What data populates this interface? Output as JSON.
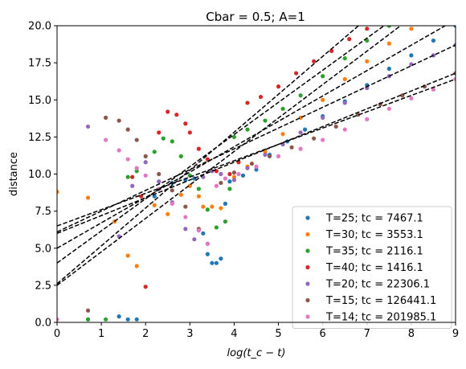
{
  "chart_data": {
    "type": "scatter",
    "title": "Cbar = 0.5; A=1",
    "xlabel": "log(t_c − t)",
    "ylabel": "distance",
    "xlim": [
      0,
      9
    ],
    "ylim": [
      0,
      20
    ],
    "xticks": [
      "0",
      "1",
      "2",
      "3",
      "4",
      "5",
      "6",
      "7",
      "8",
      "9"
    ],
    "yticks": [
      "0.0",
      "2.5",
      "5.0",
      "7.5",
      "10.0",
      "12.5",
      "15.0",
      "17.5",
      "20.0"
    ],
    "grid": false,
    "legend_position": "lower-right",
    "series": [
      {
        "name": "T=25; tc = 7467.1",
        "color": "#1f77b4",
        "points": [
          [
            0.7,
            0.2
          ],
          [
            1.4,
            0.4
          ],
          [
            1.6,
            0.2
          ],
          [
            1.8,
            0.2
          ],
          [
            2.2,
            8.5
          ],
          [
            2.6,
            9.4
          ],
          [
            2.9,
            9.6
          ],
          [
            3.1,
            9.7
          ],
          [
            3.3,
            6.0
          ],
          [
            3.4,
            4.6
          ],
          [
            3.5,
            4.0
          ],
          [
            3.6,
            4.0
          ],
          [
            3.7,
            4.3
          ],
          [
            3.8,
            8.0
          ],
          [
            3.9,
            9.5
          ],
          [
            4.2,
            9.9
          ],
          [
            4.5,
            10.3
          ],
          [
            4.8,
            11.3
          ],
          [
            5.2,
            12.2
          ],
          [
            5.6,
            13.0
          ],
          [
            6.0,
            13.9
          ],
          [
            6.5,
            14.9
          ],
          [
            7.0,
            16.0
          ],
          [
            7.5,
            17.1
          ],
          [
            8.0,
            18.0
          ],
          [
            8.5,
            19.0
          ],
          [
            9.0,
            20.0
          ]
        ],
        "fit": [
          [
            0,
            5.0
          ],
          [
            9,
            20.4
          ]
        ]
      },
      {
        "name": "T=30; tc = 3553.1",
        "color": "#ff7f0e",
        "points": [
          [
            0,
            8.8
          ],
          [
            0.7,
            8.4
          ],
          [
            1.3,
            6.8
          ],
          [
            1.6,
            4.5
          ],
          [
            1.8,
            3.8
          ],
          [
            2.2,
            7.9
          ],
          [
            2.5,
            7.3
          ],
          [
            2.8,
            8.6
          ],
          [
            3.0,
            9.2
          ],
          [
            3.2,
            8.5
          ],
          [
            3.3,
            7.8
          ],
          [
            3.5,
            7.8
          ],
          [
            3.7,
            7.7
          ],
          [
            4.0,
            9.8
          ],
          [
            4.3,
            10.5
          ],
          [
            4.7,
            11.5
          ],
          [
            5.1,
            12.7
          ],
          [
            5.5,
            13.8
          ],
          [
            6.0,
            15.0
          ],
          [
            6.5,
            16.4
          ],
          [
            7.0,
            17.6
          ],
          [
            7.5,
            18.8
          ],
          [
            8.0,
            19.8
          ]
        ],
        "fit": [
          [
            0,
            2.5
          ],
          [
            9,
            22.8
          ]
        ]
      },
      {
        "name": "T=35; tc = 2116.1",
        "color": "#2ca02c",
        "points": [
          [
            0.7,
            0.2
          ],
          [
            1.1,
            0.2
          ],
          [
            1.6,
            9.8
          ],
          [
            1.8,
            10.2
          ],
          [
            2.2,
            11.5
          ],
          [
            2.4,
            12.4
          ],
          [
            2.6,
            12.2
          ],
          [
            2.8,
            11.2
          ],
          [
            3.0,
            9.9
          ],
          [
            3.2,
            9.0
          ],
          [
            3.4,
            7.6
          ],
          [
            3.6,
            6.4
          ],
          [
            3.8,
            6.8
          ],
          [
            3.9,
            9.0
          ],
          [
            4.0,
            12.5
          ],
          [
            4.3,
            13.0
          ],
          [
            4.7,
            13.6
          ],
          [
            5.1,
            14.4
          ],
          [
            5.5,
            15.3
          ],
          [
            6.0,
            16.6
          ],
          [
            6.5,
            17.8
          ],
          [
            7.0,
            19.0
          ],
          [
            7.5,
            20.0
          ]
        ],
        "fit": [
          [
            0,
            4.0
          ],
          [
            9,
            23.5
          ]
        ]
      },
      {
        "name": "T=40; tc = 1416.1",
        "color": "#d62728",
        "points": [
          [
            1.7,
            9.8
          ],
          [
            1.9,
            8.5
          ],
          [
            2.0,
            2.4
          ],
          [
            2.3,
            12.8
          ],
          [
            2.5,
            14.2
          ],
          [
            2.7,
            14.0
          ],
          [
            2.9,
            13.4
          ],
          [
            3.0,
            12.8
          ],
          [
            3.2,
            11.7
          ],
          [
            3.4,
            11.0
          ],
          [
            3.6,
            10.2
          ],
          [
            3.9,
            10.0
          ],
          [
            4.1,
            10.8
          ],
          [
            4.3,
            14.8
          ],
          [
            4.6,
            15.2
          ],
          [
            5.0,
            15.9
          ],
          [
            5.4,
            16.8
          ],
          [
            5.8,
            17.6
          ],
          [
            6.2,
            18.3
          ],
          [
            6.6,
            19.1
          ],
          [
            7.0,
            19.8
          ]
        ],
        "fit": [
          [
            0,
            2.6
          ],
          [
            9,
            25.6
          ]
        ]
      },
      {
        "name": "T=20; tc = 22306.1",
        "color": "#9467bd",
        "points": [
          [
            0.7,
            13.2
          ],
          [
            1.4,
            5.8
          ],
          [
            1.7,
            9.2
          ],
          [
            2.0,
            10.8
          ],
          [
            2.3,
            9.5
          ],
          [
            2.6,
            8.1
          ],
          [
            2.9,
            6.3
          ],
          [
            3.1,
            5.6
          ],
          [
            3.3,
            9.8
          ],
          [
            3.5,
            10.2
          ],
          [
            3.7,
            10.0
          ],
          [
            4.0,
            9.6
          ],
          [
            4.3,
            10.4
          ],
          [
            4.7,
            11.3
          ],
          [
            5.1,
            12.0
          ],
          [
            5.5,
            12.8
          ],
          [
            6.0,
            13.8
          ],
          [
            6.5,
            14.8
          ],
          [
            7.0,
            15.8
          ],
          [
            7.5,
            16.6
          ],
          [
            8.0,
            17.4
          ],
          [
            8.5,
            18.0
          ],
          [
            9.0,
            18.7
          ]
        ],
        "fit": [
          [
            0,
            6.1
          ],
          [
            9,
            18.7
          ]
        ]
      },
      {
        "name": "T=15; tc = 126441.1",
        "color": "#8c564b",
        "points": [
          [
            0.7,
            0.8
          ],
          [
            1.1,
            13.8
          ],
          [
            1.4,
            13.6
          ],
          [
            1.6,
            13.0
          ],
          [
            1.8,
            12.3
          ],
          [
            2.0,
            11.2
          ],
          [
            2.3,
            10.0
          ],
          [
            2.6,
            8.9
          ],
          [
            2.9,
            7.8
          ],
          [
            3.2,
            6.3
          ],
          [
            3.4,
            5.3
          ],
          [
            3.7,
            9.4
          ],
          [
            4.0,
            10.1
          ],
          [
            4.4,
            10.7
          ],
          [
            4.8,
            11.2
          ],
          [
            5.3,
            11.8
          ],
          [
            5.8,
            12.4
          ],
          [
            6.3,
            13.2
          ],
          [
            6.8,
            14.0
          ],
          [
            7.3,
            14.7
          ],
          [
            7.8,
            15.3
          ],
          [
            8.3,
            15.9
          ],
          [
            9.0,
            16.8
          ]
        ],
        "fit": [
          [
            0,
            6.0
          ],
          [
            9,
            16.8
          ]
        ]
      },
      {
        "name": "T=14; tc = 201985.1",
        "color": "#e377c2",
        "points": [
          [
            0,
            0.2
          ],
          [
            1.1,
            12.3
          ],
          [
            1.4,
            11.6
          ],
          [
            1.6,
            11.0
          ],
          [
            1.8,
            10.4
          ],
          [
            2.0,
            9.9
          ],
          [
            2.3,
            9.0
          ],
          [
            2.6,
            8.0
          ],
          [
            2.9,
            7.1
          ],
          [
            3.2,
            6.2
          ],
          [
            3.4,
            5.3
          ],
          [
            3.6,
            9.2
          ],
          [
            3.8,
            9.7
          ],
          [
            4.1,
            10.0
          ],
          [
            4.5,
            10.5
          ],
          [
            5.0,
            11.2
          ],
          [
            5.5,
            11.7
          ],
          [
            6.0,
            12.3
          ],
          [
            6.5,
            13.0
          ],
          [
            7.0,
            13.7
          ],
          [
            7.5,
            14.4
          ],
          [
            8.0,
            15.1
          ],
          [
            8.5,
            15.7
          ],
          [
            9.0,
            16.4
          ]
        ],
        "fit": [
          [
            0,
            6.5
          ],
          [
            9,
            16.4
          ]
        ]
      }
    ]
  }
}
